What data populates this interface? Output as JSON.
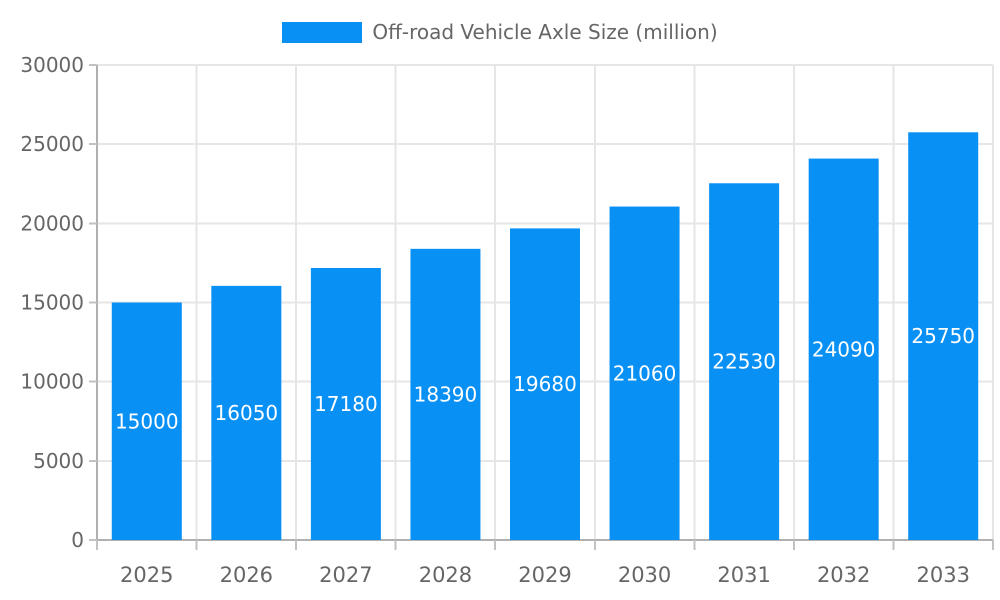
{
  "legend": {
    "label": "Off-road Vehicle Axle Size (million)"
  },
  "colors": {
    "bar": "#0890f5",
    "grid": "#e6e6e6",
    "axis_line": "#b0b0b0",
    "tick_mark": "#c2c2c2",
    "tick_text": "#666666",
    "bar_label_text": "#ffffff",
    "background": "#ffffff"
  },
  "chart_data": {
    "type": "bar",
    "title": "Off-road Vehicle Axle Size (million)",
    "categories": [
      "2025",
      "2026",
      "2027",
      "2028",
      "2029",
      "2030",
      "2031",
      "2032",
      "2033"
    ],
    "values": [
      15000,
      16050,
      17180,
      18390,
      19680,
      21060,
      22530,
      24090,
      25750
    ],
    "xlabel": "",
    "ylabel": "",
    "ylim": [
      0,
      30000
    ],
    "yticks": [
      0,
      5000,
      10000,
      15000,
      20000,
      25000,
      30000
    ],
    "grid": true,
    "legend_position": "top",
    "bar_labels_position": "center"
  }
}
